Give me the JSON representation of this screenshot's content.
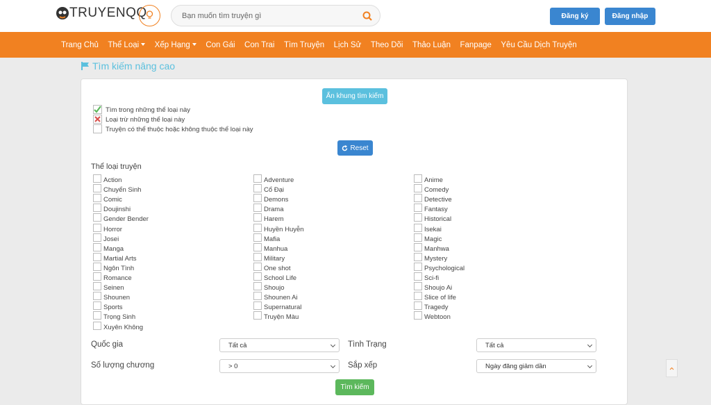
{
  "header": {
    "logo": "TRUYENQQ",
    "search_placeholder": "Bạn muốn tìm truyện gì",
    "register": "Đăng ký",
    "login": "Đăng nhập"
  },
  "nav": [
    {
      "label": "Trang Chủ"
    },
    {
      "label": "Thể Loại",
      "dropdown": true
    },
    {
      "label": "Xếp Hạng",
      "dropdown": true
    },
    {
      "label": "Con Gái"
    },
    {
      "label": "Con Trai"
    },
    {
      "label": "Tìm Truyện"
    },
    {
      "label": "Lịch Sử"
    },
    {
      "label": "Theo Dõi"
    },
    {
      "label": "Thảo Luận"
    },
    {
      "label": "Fanpage"
    },
    {
      "label": "Yêu Cầu Dịch Truyện"
    }
  ],
  "page_title": "Tìm kiếm nâng cao",
  "panel": {
    "hide_button": "Ẩn khung tìm kiếm",
    "options": [
      "Tìm trong những thể loại này",
      "Loại trừ những thể loại này",
      "Truyện có thể thuộc hoặc không thuộc thể loại này"
    ],
    "reset": "Reset",
    "genre_heading": "Thể loại truyện",
    "genres": [
      [
        "Action",
        "Chuyển Sinh",
        "Comic",
        "Doujinshi",
        "Gender Bender",
        "Horror",
        "Josei",
        "Manga",
        "Martial Arts",
        "Ngôn Tình",
        "Romance",
        "Seinen",
        "Shounen",
        "Sports",
        "Trọng Sinh",
        "Xuyên Không"
      ],
      [
        "Adventure",
        "Cổ Đại",
        "Demons",
        "Drama",
        "Harem",
        "Huyền Huyễn",
        "Mafia",
        "Manhua",
        "Military",
        "One shot",
        "School Life",
        "Shoujo",
        "Shounen Ai",
        "Supernatural",
        "Truyện Màu"
      ],
      [
        "Anime",
        "Comedy",
        "Detective",
        "Fantasy",
        "Historical",
        "Isekai",
        "Magic",
        "Manhwa",
        "Mystery",
        "Psychological",
        "Sci-fi",
        "Shoujo Ai",
        "Slice of life",
        "Tragedy",
        "Webtoon"
      ]
    ],
    "filters": [
      {
        "label": "Quốc gia",
        "value": "Tất cả"
      },
      {
        "label": "Tình Trạng",
        "value": "Tất cả"
      },
      {
        "label": "Số lượng chương",
        "value": "> 0"
      },
      {
        "label": "Sắp xếp",
        "value": "Ngày đăng giảm dần"
      }
    ],
    "submit": "Tìm kiếm"
  }
}
